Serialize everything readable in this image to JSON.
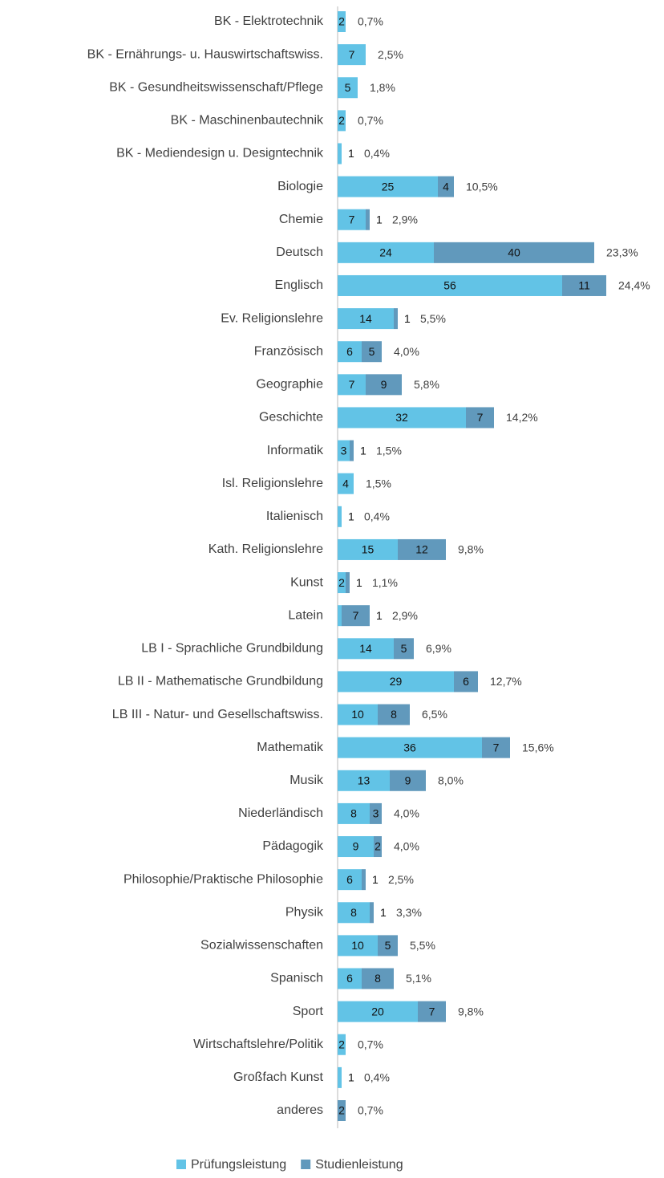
{
  "chart_data": {
    "type": "stacked_bar_horizontal",
    "categories": [
      "BK - Elektrotechnik",
      "BK - Ernährungs- u. Hauswirtschaftswiss.",
      "BK - Gesundheitswissenschaft/Pflege",
      "BK - Maschinenbautechnik",
      "BK - Mediendesign u. Designtechnik",
      "Biologie",
      "Chemie",
      "Deutsch",
      "Englisch",
      "Ev. Religionslehre",
      "Französisch",
      "Geographie",
      "Geschichte",
      "Informatik",
      "Isl. Religionslehre",
      "Italienisch",
      "Kath. Religionslehre",
      "Kunst",
      "Latein",
      "LB I - Sprachliche Grundbildung",
      "LB II - Mathematische Grundbildung",
      "LB III - Natur- und Gesellschaftswiss.",
      "Mathematik",
      "Musik",
      "Niederländisch",
      "Pädagogik",
      "Philosophie/Praktische Philosophie",
      "Physik",
      "Sozialwissenschaften",
      "Spanisch",
      "Sport",
      "Wirtschaftslehre/Politik",
      "Großfach Kunst",
      "anderes"
    ],
    "series": [
      {
        "name": "Prüfungsleistung",
        "color": "#62c3e6",
        "values": [
          2,
          7,
          5,
          2,
          1,
          25,
          7,
          24,
          56,
          14,
          6,
          7,
          32,
          3,
          4,
          1,
          15,
          2,
          1,
          14,
          29,
          10,
          36,
          13,
          8,
          9,
          6,
          8,
          10,
          6,
          20,
          2,
          1,
          null
        ]
      },
      {
        "name": "Studienleistung",
        "color": "#6199bc",
        "values": [
          null,
          null,
          null,
          null,
          null,
          4,
          1,
          40,
          11,
          1,
          5,
          9,
          7,
          1,
          null,
          null,
          12,
          1,
          7,
          5,
          6,
          8,
          7,
          9,
          3,
          2,
          1,
          1,
          5,
          8,
          7,
          null,
          null,
          2
        ]
      }
    ],
    "shares": [
      0.7,
      2.5,
      1.8,
      0.7,
      0.4,
      10.5,
      2.9,
      23.3,
      24.4,
      5.5,
      4.0,
      5.8,
      14.2,
      1.5,
      1.5,
      0.4,
      9.8,
      1.1,
      2.9,
      6.9,
      12.7,
      6.5,
      15.6,
      8.0,
      4.0,
      4.0,
      2.5,
      3.3,
      5.5,
      5.1,
      9.8,
      0.7,
      0.4,
      0.7
    ],
    "share_labels": [
      "0,7%",
      "2,5%",
      "1,8%",
      "0,7%",
      "0,4%",
      "10,5%",
      "2,9%",
      "23,3%",
      "24,4%",
      "5,5%",
      "4,0%",
      "5,8%",
      "14,2%",
      "1,5%",
      "1,5%",
      "0,4%",
      "9,8%",
      "1,1%",
      "2,9%",
      "6,9%",
      "12,7%",
      "6,5%",
      "15,6%",
      "8,0%",
      "4,0%",
      "4,0%",
      "2,5%",
      "3,3%",
      "5,5%",
      "5,1%",
      "9,8%",
      "0,7%",
      "0,4%",
      "0,7%"
    ],
    "legend": "bottom"
  }
}
